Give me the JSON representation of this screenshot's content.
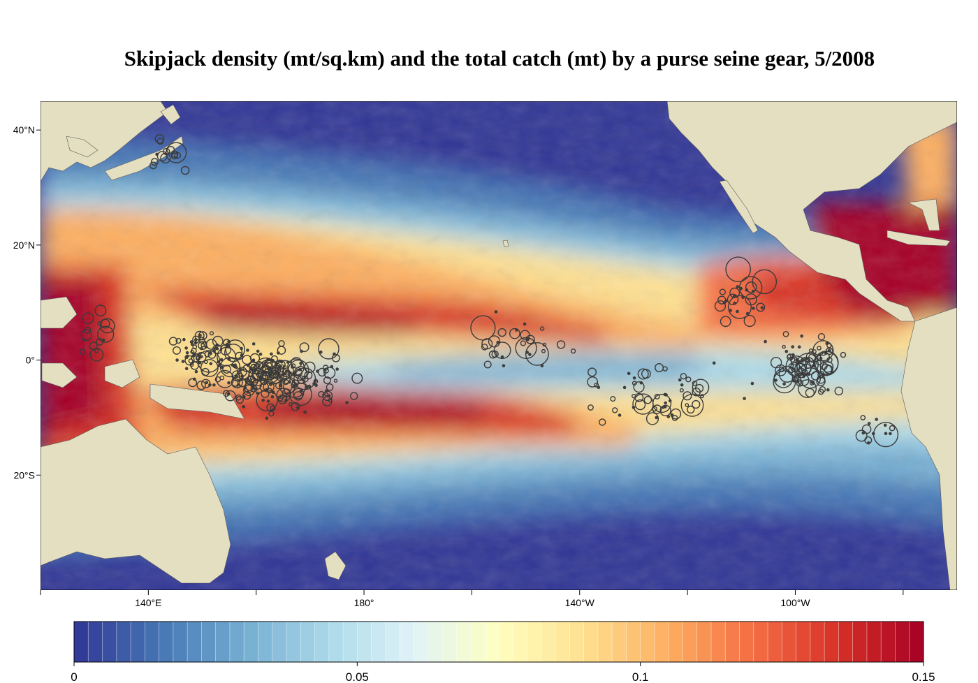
{
  "title": "Skipjack density (mt/sq.km) and the total catch (mt) by a purse seine gear, 5/2008",
  "map": {
    "lat_labels": [
      {
        "text": "40°N",
        "lat": 40
      },
      {
        "text": "20°N",
        "lat": 20
      },
      {
        "text": "0°",
        "lat": 0
      },
      {
        "text": "20°S",
        "lat": -20
      }
    ],
    "lon_labels": [
      {
        "text": "140°E",
        "lon": 140
      },
      {
        "text": "180°",
        "lon": 180
      },
      {
        "text": "140°W",
        "lon": 220
      },
      {
        "text": "100°W",
        "lon": 260
      }
    ],
    "colors": {
      "land": "#e5dfc1",
      "ocean_low": "#313695",
      "ocean_high": "#a50026",
      "catch_circle": "#3a3a3a"
    }
  },
  "colorbar": {
    "min": 0,
    "max": 0.15,
    "tick_labels": [
      {
        "text": "0",
        "value": 0
      },
      {
        "text": "0.05",
        "value": 0.05
      },
      {
        "text": "0.1",
        "value": 0.1
      },
      {
        "text": "0.15",
        "value": 0.15
      }
    ],
    "stops": [
      "#313695",
      "#4575b4",
      "#74add1",
      "#abd9e9",
      "#e0f3f8",
      "#ffffbf",
      "#fee090",
      "#fdae61",
      "#f46d43",
      "#d73027",
      "#a50026"
    ]
  }
}
